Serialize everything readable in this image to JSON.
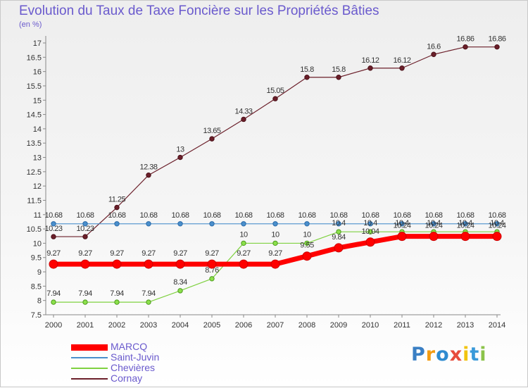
{
  "chart_data": {
    "type": "line",
    "title": "Evolution du Taux de Taxe Foncière sur les Propriétés Bâties",
    "ylabel": "(en %)",
    "xlabel": "",
    "ylim": [
      7.5,
      17
    ],
    "yticks": [
      "7.5",
      "8",
      "8.5",
      "9",
      "9.5",
      "10",
      "10.5",
      "11",
      "11.5",
      "12",
      "12.5",
      "13",
      "13.5",
      "14",
      "14.5",
      "15",
      "15.5",
      "16",
      "16.5",
      "17"
    ],
    "categories": [
      "2000",
      "2001",
      "2002",
      "2003",
      "2004",
      "2005",
      "2006",
      "2007",
      "2008",
      "2009",
      "2010",
      "2011",
      "2012",
      "2013",
      "2014"
    ],
    "series": [
      {
        "name": "Cornay",
        "color": "#6b1f2a",
        "values": [
          10.23,
          10.23,
          11.25,
          12.38,
          13,
          13.65,
          14.33,
          15.05,
          15.8,
          15.8,
          16.12,
          16.12,
          16.6,
          16.86,
          16.86
        ],
        "labels": [
          "10.23",
          "10.23",
          "11.25",
          "12.38",
          "13",
          "13.65",
          "14.33",
          "15.05",
          "15.8",
          "15.8",
          "16.12",
          "16.12",
          "16.6",
          "16.86",
          "16.86"
        ]
      },
      {
        "name": "Saint-Juvin",
        "color": "#4a8fcc",
        "values": [
          10.68,
          10.68,
          10.68,
          10.68,
          10.68,
          10.68,
          10.68,
          10.68,
          10.68,
          10.68,
          10.68,
          10.68,
          10.68,
          10.68,
          10.68
        ],
        "labels": [
          "10.68",
          "10.68",
          "10.68",
          "10.68",
          "10.68",
          "10.68",
          "10.68",
          "10.68",
          "10.68",
          "10.68",
          "10.68",
          "10.68",
          "10.68",
          "10.68",
          "10.68"
        ]
      },
      {
        "name": "Chevières",
        "color": "#7fd140",
        "values": [
          7.94,
          7.94,
          7.94,
          7.94,
          8.34,
          8.76,
          10,
          10,
          10,
          10.4,
          10.4,
          10.4,
          10.4,
          10.4,
          10.4
        ],
        "labels": [
          "7.94",
          "7.94",
          "7.94",
          "7.94",
          "8.34",
          "8.76",
          "10",
          "10",
          "10",
          "10.4",
          "10.4",
          "10.4",
          "10.4",
          "10.4",
          "10.4"
        ]
      },
      {
        "name": "MARCQ",
        "color": "#ff0000",
        "values": [
          9.27,
          9.27,
          9.27,
          9.27,
          9.27,
          9.27,
          9.27,
          9.27,
          9.55,
          9.84,
          10.04,
          10.24,
          10.24,
          10.24,
          10.24
        ],
        "labels": [
          "9.27",
          "9.27",
          "9.27",
          "9.27",
          "9.27",
          "9.27",
          "9.27",
          "9.27",
          "9.55",
          "9.84",
          "10.04",
          "10.24",
          "10.24",
          "10.24",
          "10.24"
        ]
      }
    ],
    "legend": [
      "MARCQ",
      "Saint-Juvin",
      "Chevières",
      "Cornay"
    ],
    "legend_position": "bottom-left"
  },
  "logo": {
    "letters": [
      "P",
      "r",
      "o",
      "x",
      "i",
      "t",
      "i"
    ],
    "colors": [
      "#3a7fc4",
      "#f39c12",
      "#2e8bd0",
      "#e74c3c",
      "#f1c40f",
      "#3a9ad9",
      "#8bc34a"
    ]
  }
}
